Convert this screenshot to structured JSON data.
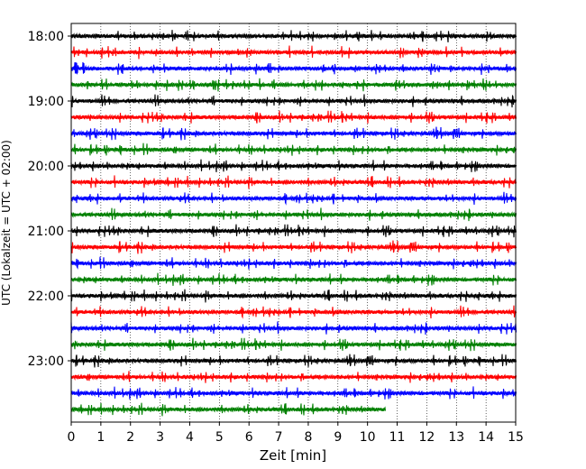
{
  "chart_data": {
    "type": "line",
    "title": "",
    "xlabel": "Zeit  [min]",
    "ylabel": "UTC (Lokalzeit = UTC + 02:00)",
    "xlim": [
      0,
      15
    ],
    "x_ticks": [
      "0",
      "1",
      "2",
      "3",
      "4",
      "5",
      "6",
      "7",
      "8",
      "9",
      "10",
      "11",
      "12",
      "13",
      "14",
      "15"
    ],
    "y_tick_labels": [
      "18:00",
      "19:00",
      "20:00",
      "21:00",
      "22:00",
      "23:00"
    ],
    "grid": "vertical dotted",
    "trace_colors": [
      "#000000",
      "#ff0000",
      "#0000ff",
      "#008000"
    ],
    "traces": [
      {
        "start": "18:00",
        "end_min": 15
      },
      {
        "start": "18:15",
        "end_min": 15
      },
      {
        "start": "18:30",
        "end_min": 15
      },
      {
        "start": "18:45",
        "end_min": 15
      },
      {
        "start": "19:00",
        "end_min": 15
      },
      {
        "start": "19:15",
        "end_min": 15
      },
      {
        "start": "19:30",
        "end_min": 15
      },
      {
        "start": "19:45",
        "end_min": 15
      },
      {
        "start": "20:00",
        "end_min": 15
      },
      {
        "start": "20:15",
        "end_min": 15
      },
      {
        "start": "20:30",
        "end_min": 15
      },
      {
        "start": "20:45",
        "end_min": 15
      },
      {
        "start": "21:00",
        "end_min": 15
      },
      {
        "start": "21:15",
        "end_min": 15
      },
      {
        "start": "21:30",
        "end_min": 15
      },
      {
        "start": "21:45",
        "end_min": 15
      },
      {
        "start": "22:00",
        "end_min": 15
      },
      {
        "start": "22:15",
        "end_min": 15
      },
      {
        "start": "22:30",
        "end_min": 15
      },
      {
        "start": "22:45",
        "end_min": 15
      },
      {
        "start": "23:00",
        "end_min": 15
      },
      {
        "start": "23:15",
        "end_min": 15
      },
      {
        "start": "23:30",
        "end_min": 15
      },
      {
        "start": "23:45",
        "end_min": 10.6
      }
    ]
  }
}
